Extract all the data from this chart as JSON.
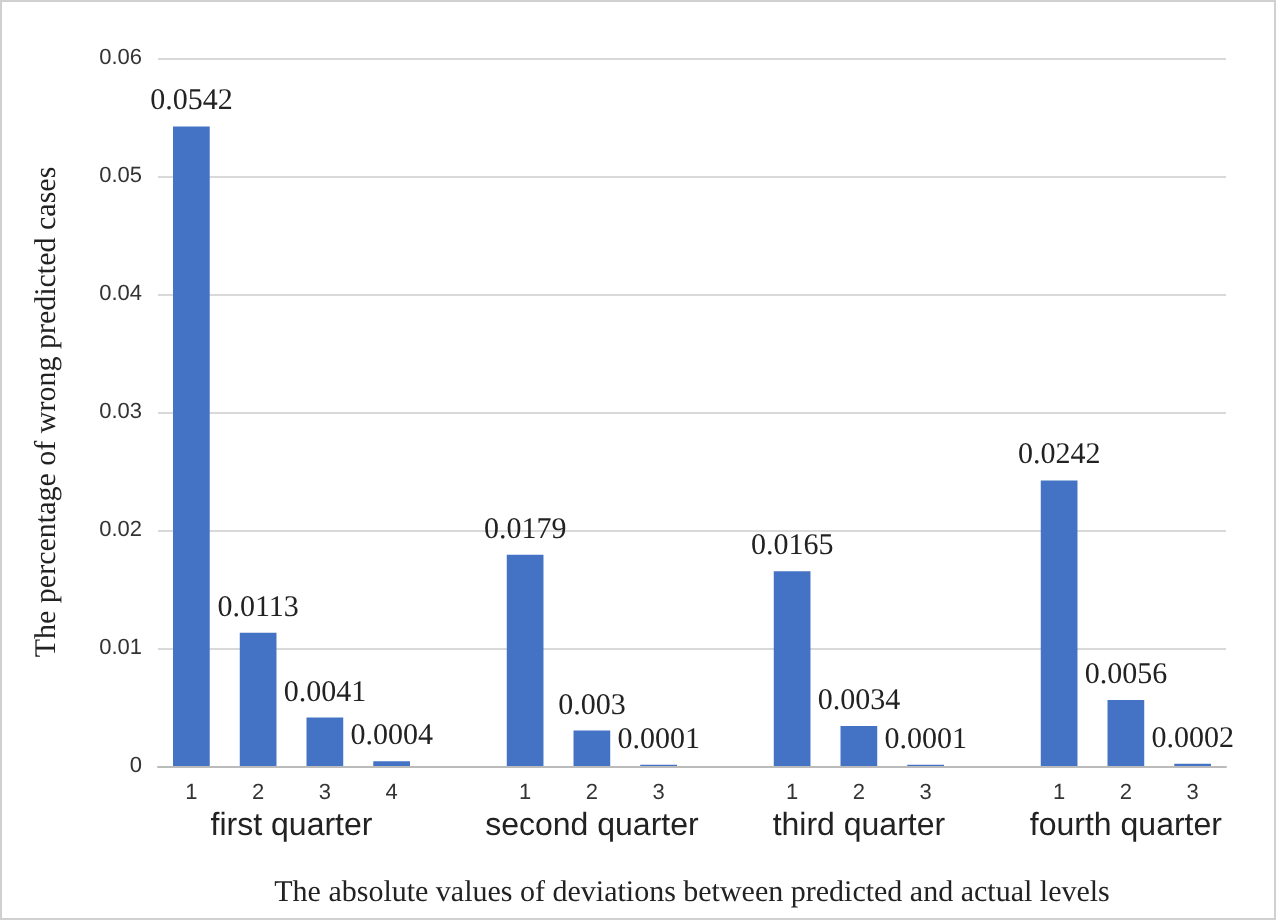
{
  "chart_data": {
    "type": "bar",
    "categories": [
      "1",
      "2",
      "3",
      "4",
      null,
      "1",
      "2",
      "3",
      null,
      "1",
      "2",
      "3",
      null,
      "1",
      "2",
      "3"
    ],
    "values": [
      0.0542,
      0.0113,
      0.0041,
      0.0004,
      null,
      0.0179,
      0.003,
      0.0001,
      null,
      0.0165,
      0.0034,
      0.0001,
      null,
      0.0242,
      0.0056,
      0.0002
    ],
    "color": "#4472c4",
    "data_labels": true,
    "annotations": [
      "first quarter",
      "second quarter",
      "third quarter",
      "fourth quarter"
    ],
    "xlabel": "The absolute values of deviations between predicted and actual levels",
    "ylabel": "The percentage of wrong predicted cases",
    "ylim": [
      0,
      0.06
    ],
    "yticks": [
      0,
      0.01,
      0.02,
      0.03,
      0.04,
      0.05,
      0.06
    ],
    "grid": "y"
  }
}
